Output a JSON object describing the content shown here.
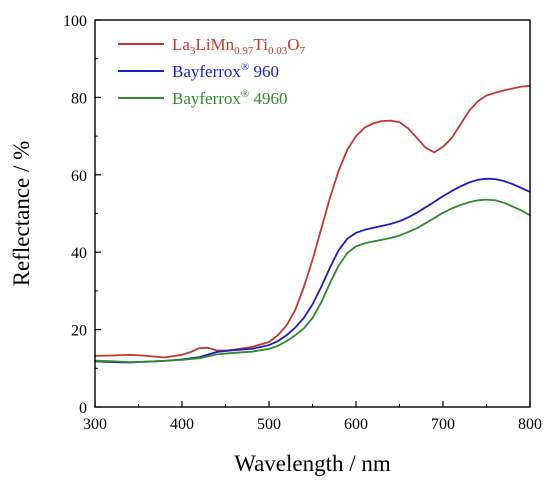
{
  "chart_data": {
    "type": "line",
    "xlabel": "Wavelength / nm",
    "ylabel": "Reflectance / %",
    "xlim": [
      300,
      800
    ],
    "ylim": [
      0,
      100
    ],
    "xticks": [
      "300",
      "400",
      "500",
      "600",
      "700",
      "800"
    ],
    "yticks": [
      "0",
      "20",
      "40",
      "60",
      "80",
      "100"
    ],
    "grid": false,
    "legend": "top-left",
    "series": [
      {
        "name": "La3LiMn0.97Ti0.03O7",
        "legend_parts": [
          {
            "t": "La",
            "sub": false
          },
          {
            "t": "3",
            "sub": true
          },
          {
            "t": "LiMn",
            "sub": false
          },
          {
            "t": "0.97",
            "sub": true
          },
          {
            "t": "Ti",
            "sub": false
          },
          {
            "t": "0.03",
            "sub": true
          },
          {
            "t": "O",
            "sub": false
          },
          {
            "t": "7",
            "sub": true
          }
        ],
        "color": "#c0392b",
        "x": [
          300,
          320,
          340,
          360,
          380,
          400,
          410,
          420,
          430,
          440,
          450,
          460,
          480,
          500,
          510,
          520,
          530,
          540,
          550,
          560,
          570,
          580,
          590,
          600,
          610,
          620,
          630,
          640,
          650,
          660,
          670,
          680,
          690,
          700,
          710,
          720,
          730,
          740,
          750,
          760,
          770,
          780,
          790,
          800
        ],
        "y": [
          13.2,
          13.3,
          13.5,
          13.2,
          12.8,
          13.5,
          14.2,
          15.2,
          15.3,
          14.6,
          14.6,
          14.8,
          15.5,
          16.8,
          18.5,
          21.0,
          25.0,
          31.0,
          38.0,
          46.0,
          54.0,
          61.0,
          66.5,
          70.0,
          72.2,
          73.3,
          73.9,
          74.0,
          73.6,
          72.0,
          69.5,
          67.0,
          65.8,
          67.2,
          69.5,
          73.0,
          76.5,
          79.0,
          80.5,
          81.2,
          81.8,
          82.3,
          82.8,
          83.0
        ]
      },
      {
        "name": "Bayferrox® 960",
        "legend_parts": [
          {
            "t": "Bayferrox",
            "sub": false
          },
          {
            "t": "®",
            "sup": true
          },
          {
            "t": " 960",
            "sub": false
          }
        ],
        "color": "#1c1cc8",
        "x": [
          300,
          320,
          340,
          360,
          380,
          400,
          420,
          440,
          460,
          480,
          500,
          510,
          520,
          530,
          540,
          550,
          560,
          570,
          580,
          590,
          600,
          610,
          620,
          630,
          640,
          650,
          660,
          670,
          680,
          690,
          700,
          710,
          720,
          730,
          740,
          750,
          760,
          770,
          780,
          790,
          800
        ],
        "y": [
          11.8,
          11.6,
          11.5,
          11.7,
          11.9,
          12.3,
          12.9,
          14.2,
          14.7,
          15.0,
          16.0,
          17.0,
          18.5,
          20.5,
          23.0,
          26.5,
          31.0,
          36.0,
          40.5,
          43.5,
          45.0,
          45.8,
          46.3,
          46.8,
          47.3,
          48.0,
          49.0,
          50.2,
          51.6,
          53.0,
          54.5,
          55.8,
          57.0,
          58.0,
          58.7,
          59.0,
          58.9,
          58.4,
          57.6,
          56.6,
          55.6
        ]
      },
      {
        "name": "Bayferrox® 4960",
        "legend_parts": [
          {
            "t": "Bayferrox",
            "sub": false
          },
          {
            "t": "®",
            "sup": true
          },
          {
            "t": " 4960",
            "sub": false
          }
        ],
        "color": "#2e8b2e",
        "x": [
          300,
          320,
          340,
          360,
          380,
          400,
          420,
          440,
          460,
          480,
          500,
          510,
          520,
          530,
          540,
          550,
          560,
          570,
          580,
          590,
          600,
          610,
          620,
          630,
          640,
          650,
          660,
          670,
          680,
          690,
          700,
          710,
          720,
          730,
          740,
          750,
          760,
          770,
          780,
          790,
          800
        ],
        "y": [
          12.0,
          11.8,
          11.6,
          11.7,
          11.9,
          12.2,
          12.6,
          13.6,
          14.0,
          14.3,
          15.0,
          15.8,
          17.0,
          18.5,
          20.3,
          23.0,
          27.0,
          32.0,
          36.5,
          39.8,
          41.5,
          42.3,
          42.8,
          43.2,
          43.7,
          44.3,
          45.2,
          46.2,
          47.5,
          48.8,
          50.2,
          51.3,
          52.2,
          52.9,
          53.4,
          53.6,
          53.4,
          52.8,
          51.8,
          50.8,
          49.5
        ]
      }
    ]
  }
}
